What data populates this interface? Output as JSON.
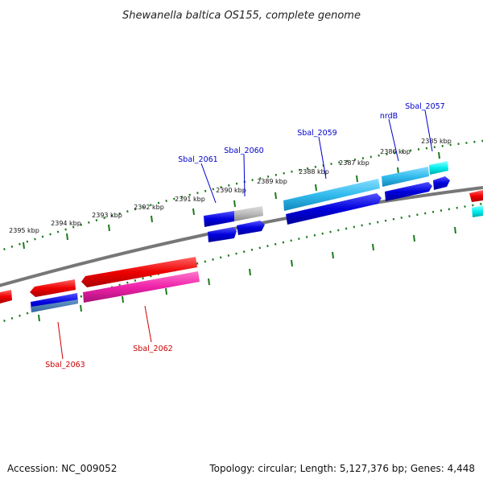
{
  "title": "Shewanella baltica OS155, complete genome",
  "footer": {
    "accession": "Accession: NC_009052",
    "summary": "Topology: circular; Length: 5,127,376 bp; Genes: 4,448"
  },
  "ticks": [
    "2395 kbp",
    "2394 kbp",
    "2393 kbp",
    "2392 kbp",
    "2391 kbp",
    "2390 kbp",
    "2389 kbp",
    "2388 kbp",
    "2387 kbp",
    "2386 kbp",
    "2385 kbp"
  ],
  "gene_labels_top": [
    "Sbal_2061",
    "Sbal_2060",
    "Sbal_2059",
    "nrdB",
    "Sbal_2057"
  ],
  "gene_labels_bottom": [
    "Sbal_2063",
    "Sbal_2062"
  ],
  "colors": {
    "backbone": "#888888",
    "tick": "#1a7a1a",
    "forward_blue": "#0000dd",
    "forward_light": "#33bbee",
    "forward_cyan": "#00eeee",
    "reverse_red": "#ee0000",
    "reverse_pink": "#ee22aa",
    "pseudo_grey": "#bbbbbb",
    "label_top": "#0000cc",
    "label_bottom": "#cc0000"
  }
}
